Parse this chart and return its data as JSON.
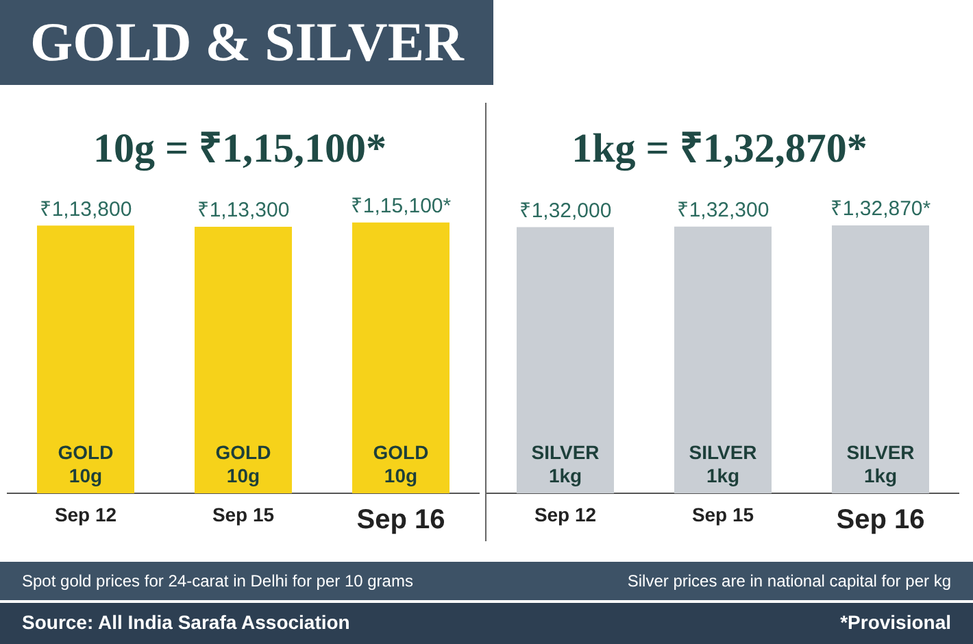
{
  "chart_data": [
    {
      "type": "bar",
      "title": "GOLD & SILVER",
      "subtitle": "10g = ₹1,15,100*",
      "categories": [
        "Sep 12",
        "Sep 15",
        "Sep 16"
      ],
      "values": [
        113800,
        113300,
        115100
      ],
      "color": "#f6d21a",
      "value_labels": [
        "₹1,13,800",
        "₹1,13,300",
        "₹1,15,100*"
      ],
      "tick_labels": "x",
      "grid": false,
      "legend": false,
      "annotations": [
        "GOLD\n10g",
        "GOLD\n10g",
        "GOLD\n10g",
        "Spot gold prices for 24-carat in Delhi for per 10 grams",
        "Source: All India Sarafa Association"
      ]
    },
    {
      "type": "bar",
      "subtitle": "1kg = ₹1,32,870*",
      "categories": [
        "Sep 12",
        "Sep 15",
        "Sep 16"
      ],
      "values": [
        132000,
        132300,
        132870
      ],
      "color": "#c9ced4",
      "value_labels": [
        "₹1,32,000",
        "₹1,32,300",
        "₹1,32,870*"
      ],
      "tick_labels": "x",
      "grid": false,
      "legend": false,
      "annotations": [
        "SILVER\n1kg",
        "SILVER\n1kg",
        "SILVER\n1kg",
        "Silver prices are in national capital for per kg",
        "*Provisional"
      ]
    }
  ]
}
